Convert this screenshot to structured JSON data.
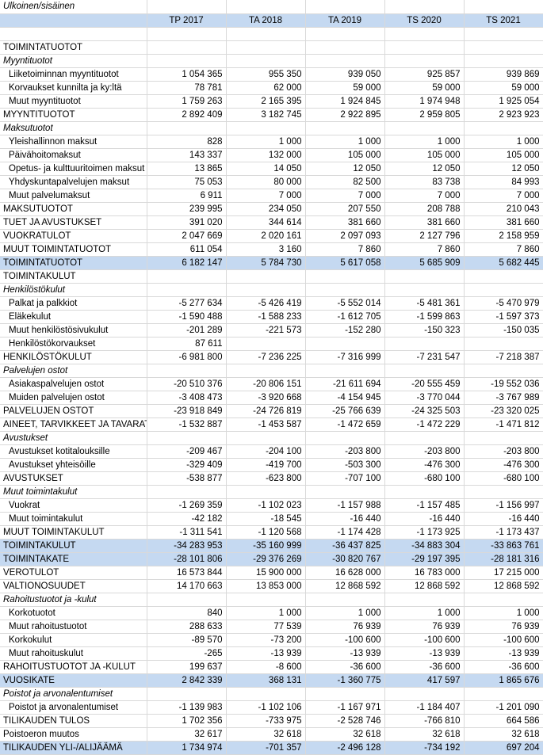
{
  "sheet": {
    "caption": "Ulkoinen/sisäinen",
    "columns": [
      "TP 2017",
      "TA 2018",
      "TA 2019",
      "TS 2020",
      "TS 2021"
    ],
    "rows": [
      {
        "label": "",
        "values": [
          "",
          "",
          "",
          "",
          ""
        ],
        "style": "blank"
      },
      {
        "label": "TOIMINTATUOTOT",
        "values": [
          "",
          "",
          "",
          "",
          ""
        ],
        "style": "normal"
      },
      {
        "label": "Myyntituotot",
        "values": [
          "",
          "",
          "",
          "",
          ""
        ],
        "style": "italic"
      },
      {
        "label": "Liiketoiminnan myyntituotot",
        "values": [
          "1 054 365",
          "955 350",
          "939 050",
          "925 857",
          "939 869"
        ],
        "style": "indent"
      },
      {
        "label": "Korvaukset kunnilta ja ky:ltä",
        "values": [
          "78 781",
          "62 000",
          "59 000",
          "59 000",
          "59 000"
        ],
        "style": "indent"
      },
      {
        "label": "Muut myyntituotot",
        "values": [
          "1 759 263",
          "2 165 395",
          "1 924 845",
          "1 974 948",
          "1 925 054"
        ],
        "style": "indent"
      },
      {
        "label": "MYYNTITUOTOT",
        "values": [
          "2 892 409",
          "3 182 745",
          "2 922 895",
          "2 959 805",
          "2 923 923"
        ],
        "style": "normal"
      },
      {
        "label": "Maksutuotot",
        "values": [
          "",
          "",
          "",
          "",
          ""
        ],
        "style": "italic"
      },
      {
        "label": "Yleishallinnon maksut",
        "values": [
          "828",
          "1 000",
          "1 000",
          "1 000",
          "1 000"
        ],
        "style": "indent"
      },
      {
        "label": "Päivähoitomaksut",
        "values": [
          "143 337",
          "132 000",
          "105 000",
          "105 000",
          "105 000"
        ],
        "style": "indent"
      },
      {
        "label": "Opetus- ja kulttuuritoimen maksut",
        "values": [
          "13 865",
          "14 050",
          "12 050",
          "12 050",
          "12 050"
        ],
        "style": "indent"
      },
      {
        "label": "Yhdyskuntapalvelujen maksut",
        "values": [
          "75 053",
          "80 000",
          "82 500",
          "83 738",
          "84 993"
        ],
        "style": "indent"
      },
      {
        "label": "Muut palvelumaksut",
        "values": [
          "6 911",
          "7 000",
          "7 000",
          "7 000",
          "7 000"
        ],
        "style": "indent"
      },
      {
        "label": "MAKSUTUOTOT",
        "values": [
          "239 995",
          "234 050",
          "207 550",
          "208 788",
          "210 043"
        ],
        "style": "normal"
      },
      {
        "label": "TUET JA AVUSTUKSET",
        "values": [
          "391 020",
          "344 614",
          "381 660",
          "381 660",
          "381 660"
        ],
        "style": "normal"
      },
      {
        "label": "VUOKRATULOT",
        "values": [
          "2 047 669",
          "2 020 161",
          "2 097 093",
          "2 127 796",
          "2 158 959"
        ],
        "style": "normal"
      },
      {
        "label": "MUUT TOIMINTATUOTOT",
        "values": [
          "611 054",
          "3 160",
          "7 860",
          "7 860",
          "7 860"
        ],
        "style": "normal"
      },
      {
        "label": "TOIMINTATUOTOT",
        "values": [
          "6 182 147",
          "5 784 730",
          "5 617 058",
          "5 685 909",
          "5 682 445"
        ],
        "style": "highlight"
      },
      {
        "label": "TOIMINTAKULUT",
        "values": [
          "",
          "",
          "",
          "",
          ""
        ],
        "style": "normal"
      },
      {
        "label": "Henkilöstökulut",
        "values": [
          "",
          "",
          "",
          "",
          ""
        ],
        "style": "italic"
      },
      {
        "label": "Palkat ja palkkiot",
        "values": [
          "-5 277 634",
          "-5 426 419",
          "-5 552 014",
          "-5 481 361",
          "-5 470 979"
        ],
        "style": "indent"
      },
      {
        "label": "Eläkekulut",
        "values": [
          "-1 590 488",
          "-1 588 233",
          "-1 612 705",
          "-1 599 863",
          "-1 597 373"
        ],
        "style": "indent"
      },
      {
        "label": "Muut henkilöstösivukulut",
        "values": [
          "-201 289",
          "-221 573",
          "-152 280",
          "-150 323",
          "-150 035"
        ],
        "style": "indent"
      },
      {
        "label": "Henkilöstökorvaukset",
        "values": [
          "87 611",
          "",
          "",
          "",
          ""
        ],
        "style": "indent"
      },
      {
        "label": "HENKILÖSTÖKULUT",
        "values": [
          "-6 981 800",
          "-7 236 225",
          "-7 316 999",
          "-7 231 547",
          "-7 218 387"
        ],
        "style": "normal"
      },
      {
        "label": "Palvelujen ostot",
        "values": [
          "",
          "",
          "",
          "",
          ""
        ],
        "style": "italic"
      },
      {
        "label": "Asiakaspalvelujen ostot",
        "values": [
          "-20 510 376",
          "-20 806 151",
          "-21 611 694",
          "-20 555 459",
          "-19 552 036"
        ],
        "style": "indent"
      },
      {
        "label": "Muiden palvelujen ostot",
        "values": [
          "-3 408 473",
          "-3 920 668",
          "-4 154 945",
          "-3 770 044",
          "-3 767 989"
        ],
        "style": "indent"
      },
      {
        "label": "PALVELUJEN OSTOT",
        "values": [
          "-23 918 849",
          "-24 726 819",
          "-25 766 639",
          "-24 325 503",
          "-23 320 025"
        ],
        "style": "normal"
      },
      {
        "label": "AINEET, TARVIKKEET JA TAVARAT",
        "values": [
          "-1 532 887",
          "-1 453 587",
          "-1 472 659",
          "-1 472 229",
          "-1 471 812"
        ],
        "style": "normal"
      },
      {
        "label": "Avustukset",
        "values": [
          "",
          "",
          "",
          "",
          ""
        ],
        "style": "italic"
      },
      {
        "label": "Avustukset kotitalouksille",
        "values": [
          "-209 467",
          "-204 100",
          "-203 800",
          "-203 800",
          "-203 800"
        ],
        "style": "indent"
      },
      {
        "label": "Avustukset yhteisöille",
        "values": [
          "-329 409",
          "-419 700",
          "-503 300",
          "-476 300",
          "-476 300"
        ],
        "style": "indent"
      },
      {
        "label": "AVUSTUKSET",
        "values": [
          "-538 877",
          "-623 800",
          "-707 100",
          "-680 100",
          "-680 100"
        ],
        "style": "normal"
      },
      {
        "label": "Muut toimintakulut",
        "values": [
          "",
          "",
          "",
          "",
          ""
        ],
        "style": "italic"
      },
      {
        "label": "Vuokrat",
        "values": [
          "-1 269 359",
          "-1 102 023",
          "-1 157 988",
          "-1 157 485",
          "-1 156 997"
        ],
        "style": "indent"
      },
      {
        "label": "Muut toimintakulut",
        "values": [
          "-42 182",
          "-18 545",
          "-16 440",
          "-16 440",
          "-16 440"
        ],
        "style": "indent"
      },
      {
        "label": "MUUT TOIMINTAKULUT",
        "values": [
          "-1 311 541",
          "-1 120 568",
          "-1 174 428",
          "-1 173 925",
          "-1 173 437"
        ],
        "style": "normal"
      },
      {
        "label": "TOIMINTAKULUT",
        "values": [
          "-34 283 953",
          "-35 160 999",
          "-36 437 825",
          "-34 883 304",
          "-33 863 761"
        ],
        "style": "highlight"
      },
      {
        "label": "TOIMINTAKATE",
        "values": [
          "-28 101 806",
          "-29 376 269",
          "-30 820 767",
          "-29 197 395",
          "-28 181 316"
        ],
        "style": "highlight"
      },
      {
        "label": "VEROTULOT",
        "values": [
          "16 573 844",
          "15 900 000",
          "16 628 000",
          "16 783 000",
          "17 215 000"
        ],
        "style": "normal"
      },
      {
        "label": "VALTIONOSUUDET",
        "values": [
          "14 170 663",
          "13 853 000",
          "12 868 592",
          "12 868 592",
          "12 868 592"
        ],
        "style": "normal"
      },
      {
        "label": "Rahoitustuotot ja -kulut",
        "values": [
          "",
          "",
          "",
          "",
          ""
        ],
        "style": "italic"
      },
      {
        "label": "Korkotuotot",
        "values": [
          "840",
          "1 000",
          "1 000",
          "1 000",
          "1 000"
        ],
        "style": "indent"
      },
      {
        "label": "Muut rahoitustuotot",
        "values": [
          "288 633",
          "77 539",
          "76 939",
          "76 939",
          "76 939"
        ],
        "style": "indent"
      },
      {
        "label": "Korkokulut",
        "values": [
          "-89 570",
          "-73 200",
          "-100 600",
          "-100 600",
          "-100 600"
        ],
        "style": "indent"
      },
      {
        "label": "Muut rahoituskulut",
        "values": [
          "-265",
          "-13 939",
          "-13 939",
          "-13 939",
          "-13 939"
        ],
        "style": "indent"
      },
      {
        "label": "RAHOITUSTUOTOT JA -KULUT",
        "values": [
          "199 637",
          "-8 600",
          "-36 600",
          "-36 600",
          "-36 600"
        ],
        "style": "normal"
      },
      {
        "label": "VUOSIKATE",
        "values": [
          "2 842 339",
          "368 131",
          "-1 360 775",
          "417 597",
          "1 865 676"
        ],
        "style": "highlight"
      },
      {
        "label": "Poistot ja arvonalentumiset",
        "values": [
          "",
          "",
          "",
          "",
          ""
        ],
        "style": "italic"
      },
      {
        "label": "Poistot ja arvonalentumiset",
        "values": [
          "-1 139 983",
          "-1 102 106",
          "-1 167 971",
          "-1 184 407",
          "-1 201 090"
        ],
        "style": "indent"
      },
      {
        "label": "TILIKAUDEN TULOS",
        "values": [
          "1 702 356",
          "-733 975",
          "-2 528 746",
          "-766 810",
          "664 586"
        ],
        "style": "normal"
      },
      {
        "label": "Poistoeron muutos",
        "values": [
          "32 617",
          "32 618",
          "32 618",
          "32 618",
          "32 618"
        ],
        "style": "normal"
      },
      {
        "label": "TILIKAUDEN YLI-/ALIJÄÄMÄ",
        "values": [
          "1 734 974",
          "-701 357",
          "-2 496 128",
          "-734 192",
          "697 204"
        ],
        "style": "highlight"
      }
    ]
  }
}
